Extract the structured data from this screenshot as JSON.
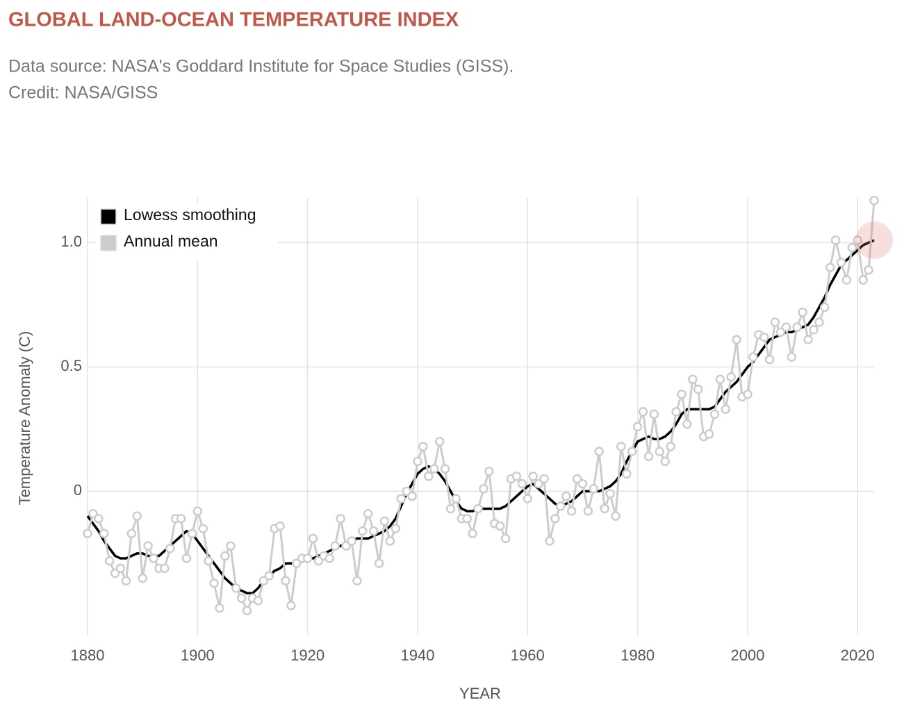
{
  "chart_data": {
    "type": "line",
    "title": "GLOBAL LAND-OCEAN TEMPERATURE INDEX",
    "subtitle": [
      "Data source: NASA's Goddard Institute for Space Studies (GISS).",
      "Credit: NASA/GISS"
    ],
    "x_label": "YEAR",
    "y_label": "Temperature Anomaly (C)",
    "x": [
      1880,
      1881,
      1882,
      1883,
      1884,
      1885,
      1886,
      1887,
      1888,
      1889,
      1890,
      1891,
      1892,
      1893,
      1894,
      1895,
      1896,
      1897,
      1898,
      1899,
      1900,
      1901,
      1902,
      1903,
      1904,
      1905,
      1906,
      1907,
      1908,
      1909,
      1910,
      1911,
      1912,
      1913,
      1914,
      1915,
      1916,
      1917,
      1918,
      1919,
      1920,
      1921,
      1922,
      1923,
      1924,
      1925,
      1926,
      1927,
      1928,
      1929,
      1930,
      1931,
      1932,
      1933,
      1934,
      1935,
      1936,
      1937,
      1938,
      1939,
      1940,
      1941,
      1942,
      1943,
      1944,
      1945,
      1946,
      1947,
      1948,
      1949,
      1950,
      1951,
      1952,
      1953,
      1954,
      1955,
      1956,
      1957,
      1958,
      1959,
      1960,
      1961,
      1962,
      1963,
      1964,
      1965,
      1966,
      1967,
      1968,
      1969,
      1970,
      1971,
      1972,
      1973,
      1974,
      1975,
      1976,
      1977,
      1978,
      1979,
      1980,
      1981,
      1982,
      1983,
      1984,
      1985,
      1986,
      1987,
      1988,
      1989,
      1990,
      1991,
      1992,
      1993,
      1994,
      1995,
      1996,
      1997,
      1998,
      1999,
      2000,
      2001,
      2002,
      2003,
      2004,
      2005,
      2006,
      2007,
      2008,
      2009,
      2010,
      2011,
      2012,
      2013,
      2014,
      2015,
      2016,
      2017,
      2018,
      2019,
      2020,
      2021,
      2022,
      2023
    ],
    "series": [
      {
        "name": "Lowess smoothing",
        "color": "#000000",
        "marker": false,
        "values": [
          -0.1,
          -0.13,
          -0.16,
          -0.2,
          -0.23,
          -0.26,
          -0.27,
          -0.27,
          -0.26,
          -0.25,
          -0.25,
          -0.26,
          -0.26,
          -0.26,
          -0.24,
          -0.22,
          -0.2,
          -0.18,
          -0.16,
          -0.17,
          -0.2,
          -0.23,
          -0.26,
          -0.29,
          -0.32,
          -0.35,
          -0.37,
          -0.39,
          -0.4,
          -0.41,
          -0.41,
          -0.39,
          -0.36,
          -0.34,
          -0.32,
          -0.31,
          -0.29,
          -0.29,
          -0.29,
          -0.28,
          -0.27,
          -0.27,
          -0.26,
          -0.25,
          -0.24,
          -0.23,
          -0.22,
          -0.21,
          -0.2,
          -0.19,
          -0.19,
          -0.19,
          -0.18,
          -0.17,
          -0.16,
          -0.14,
          -0.11,
          -0.06,
          -0.01,
          0.03,
          0.07,
          0.09,
          0.1,
          0.09,
          0.07,
          0.04,
          0.0,
          -0.04,
          -0.07,
          -0.08,
          -0.08,
          -0.07,
          -0.07,
          -0.07,
          -0.07,
          -0.07,
          -0.06,
          -0.04,
          -0.02,
          0.0,
          0.02,
          0.03,
          0.01,
          -0.01,
          -0.03,
          -0.05,
          -0.06,
          -0.05,
          -0.04,
          -0.02,
          0.0,
          0.0,
          0.0,
          0.0,
          0.01,
          0.02,
          0.04,
          0.07,
          0.12,
          0.16,
          0.2,
          0.21,
          0.22,
          0.21,
          0.21,
          0.22,
          0.24,
          0.27,
          0.31,
          0.33,
          0.33,
          0.33,
          0.33,
          0.33,
          0.34,
          0.37,
          0.4,
          0.42,
          0.44,
          0.47,
          0.5,
          0.52,
          0.55,
          0.58,
          0.61,
          0.62,
          0.63,
          0.64,
          0.64,
          0.65,
          0.66,
          0.67,
          0.7,
          0.74,
          0.78,
          0.83,
          0.87,
          0.91,
          0.93,
          0.95,
          0.97,
          0.99,
          1.0,
          1.01
        ]
      },
      {
        "name": "Annual mean",
        "color": "#cccccc",
        "marker": true,
        "values": [
          -0.17,
          -0.09,
          -0.11,
          -0.17,
          -0.28,
          -0.33,
          -0.31,
          -0.36,
          -0.17,
          -0.1,
          -0.35,
          -0.22,
          -0.27,
          -0.31,
          -0.31,
          -0.23,
          -0.11,
          -0.11,
          -0.27,
          -0.17,
          -0.08,
          -0.15,
          -0.28,
          -0.37,
          -0.47,
          -0.26,
          -0.22,
          -0.39,
          -0.43,
          -0.48,
          -0.43,
          -0.44,
          -0.36,
          -0.34,
          -0.15,
          -0.14,
          -0.36,
          -0.46,
          -0.29,
          -0.27,
          -0.27,
          -0.19,
          -0.28,
          -0.26,
          -0.27,
          -0.22,
          -0.11,
          -0.22,
          -0.2,
          -0.36,
          -0.16,
          -0.09,
          -0.16,
          -0.29,
          -0.12,
          -0.2,
          -0.15,
          -0.03,
          0.0,
          -0.02,
          0.12,
          0.18,
          0.06,
          0.09,
          0.2,
          0.09,
          -0.07,
          -0.03,
          -0.11,
          -0.11,
          -0.17,
          -0.07,
          0.01,
          0.08,
          -0.13,
          -0.14,
          -0.19,
          0.05,
          0.06,
          0.03,
          -0.03,
          0.06,
          0.03,
          0.05,
          -0.2,
          -0.11,
          -0.06,
          -0.02,
          -0.08,
          0.05,
          0.03,
          -0.08,
          0.01,
          0.16,
          -0.07,
          -0.01,
          -0.1,
          0.18,
          0.07,
          0.16,
          0.26,
          0.32,
          0.14,
          0.31,
          0.16,
          0.12,
          0.18,
          0.32,
          0.39,
          0.27,
          0.45,
          0.41,
          0.22,
          0.23,
          0.31,
          0.45,
          0.33,
          0.46,
          0.61,
          0.38,
          0.39,
          0.54,
          0.63,
          0.62,
          0.53,
          0.68,
          0.64,
          0.66,
          0.54,
          0.66,
          0.72,
          0.61,
          0.65,
          0.68,
          0.74,
          0.9,
          1.01,
          0.92,
          0.85,
          0.98,
          1.01,
          0.85,
          0.89,
          1.17
        ]
      }
    ],
    "xlim": [
      1880,
      2023
    ],
    "ylim": [
      -0.58,
      1.18
    ],
    "xticks": [
      1880,
      1900,
      1920,
      1940,
      1960,
      1980,
      2000,
      2020
    ],
    "yticks": [
      0,
      0.5,
      {
        "value": 1,
        "label": "1.0"
      }
    ],
    "grid": true,
    "legend": "upper left"
  }
}
